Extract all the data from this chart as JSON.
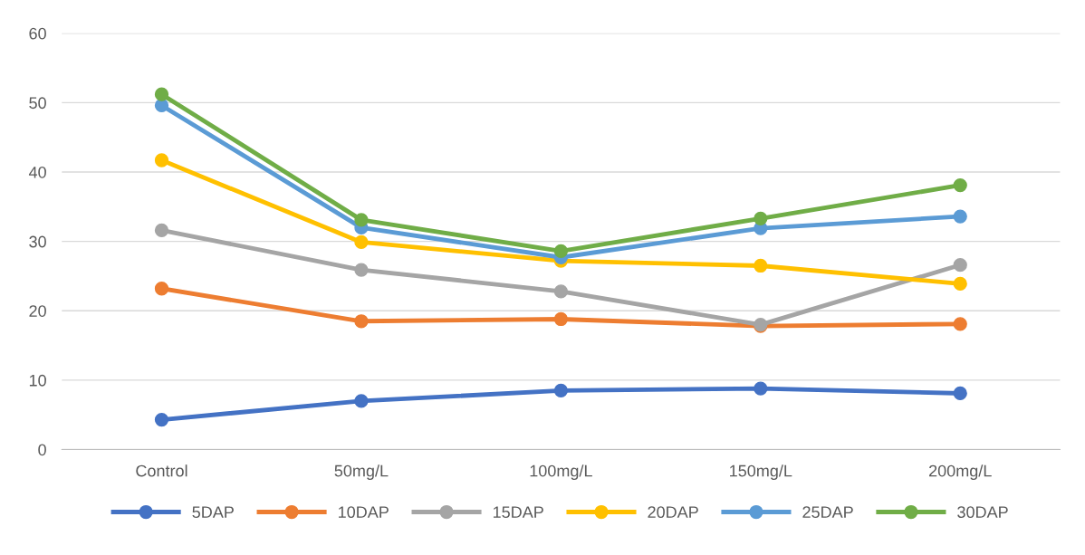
{
  "chart_data": {
    "type": "line",
    "categories": [
      "Control",
      "50mg/L",
      "100mg/L",
      "150mg/L",
      "200mg/L"
    ],
    "series": [
      {
        "name": "5DAP",
        "color": "#4472c4",
        "values": [
          4.3,
          7.0,
          8.5,
          8.8,
          8.1
        ]
      },
      {
        "name": "10DAP",
        "color": "#ed7d31",
        "values": [
          23.2,
          18.5,
          18.8,
          17.8,
          18.1
        ]
      },
      {
        "name": "15DAP",
        "color": "#a5a5a5",
        "values": [
          31.6,
          25.9,
          22.8,
          18.0,
          26.6
        ]
      },
      {
        "name": "20DAP",
        "color": "#ffc000",
        "values": [
          41.7,
          29.9,
          27.2,
          26.5,
          23.9
        ]
      },
      {
        "name": "25DAP",
        "color": "#5b9bd5",
        "values": [
          49.6,
          32.0,
          27.7,
          31.9,
          33.6
        ]
      },
      {
        "name": "30DAP",
        "color": "#70ad47",
        "values": [
          51.2,
          33.1,
          28.6,
          33.3,
          38.1
        ]
      }
    ],
    "ylim": [
      0,
      60
    ],
    "yticks": [
      0,
      10,
      20,
      30,
      40,
      50,
      60
    ],
    "grid": "y",
    "legend": "bottom",
    "marker": "circle",
    "line_style": "solid"
  }
}
